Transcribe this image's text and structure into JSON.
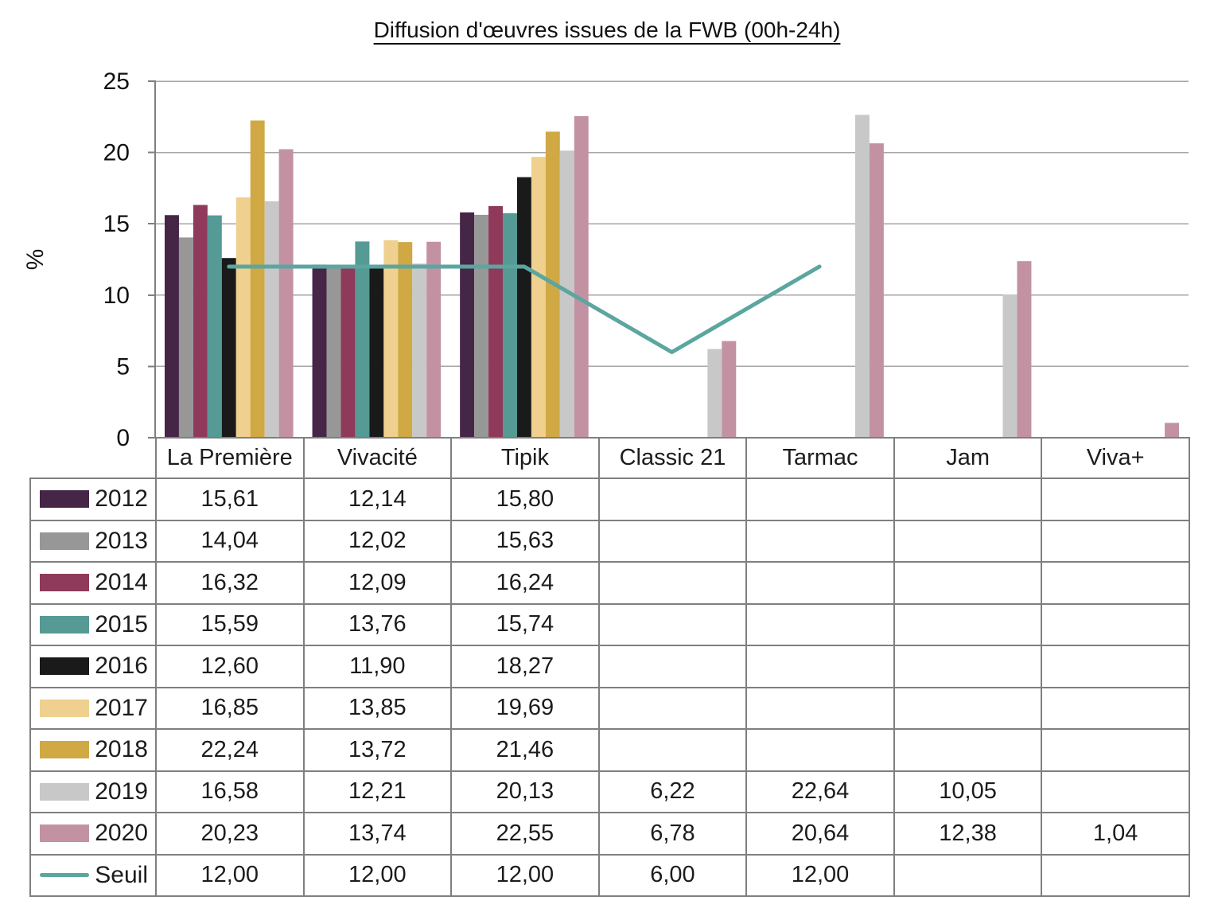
{
  "title": "Diffusion d'œuvres issues de la FWB (00h-24h)",
  "chart_data": {
    "type": "bar",
    "title": "Diffusion d'œuvres issues de la FWB (00h-24h)",
    "xlabel": "",
    "ylabel": "%",
    "ylim": [
      0,
      25
    ],
    "yticks": [
      0,
      5,
      10,
      15,
      20,
      25
    ],
    "grid": "horizontal-major-every-5",
    "legend_position": "table-left-column",
    "categories": [
      "La Première",
      "Vivacité",
      "Tipik",
      "Classic 21",
      "Tarmac",
      "Jam",
      "Viva+"
    ],
    "series": [
      {
        "name": "2012",
        "type": "bar",
        "color": "#452647",
        "values": [
          "15,61",
          "12,14",
          "15,80",
          "",
          "",
          "",
          ""
        ]
      },
      {
        "name": "2013",
        "type": "bar",
        "color": "#979797",
        "values": [
          "14,04",
          "12,02",
          "15,63",
          "",
          "",
          "",
          ""
        ]
      },
      {
        "name": "2014",
        "type": "bar",
        "color": "#8f3a5a",
        "values": [
          "16,32",
          "12,09",
          "16,24",
          "",
          "",
          "",
          ""
        ]
      },
      {
        "name": "2015",
        "type": "bar",
        "color": "#559a94",
        "values": [
          "15,59",
          "13,76",
          "15,74",
          "",
          "",
          "",
          ""
        ]
      },
      {
        "name": "2016",
        "type": "bar",
        "color": "#1a1a1a",
        "values": [
          "12,60",
          "11,90",
          "18,27",
          "",
          "",
          "",
          ""
        ]
      },
      {
        "name": "2017",
        "type": "bar",
        "color": "#efd08e",
        "values": [
          "16,85",
          "13,85",
          "19,69",
          "",
          "",
          "",
          ""
        ]
      },
      {
        "name": "2018",
        "type": "bar",
        "color": "#d0a844",
        "values": [
          "22,24",
          "13,72",
          "21,46",
          "",
          "",
          "",
          ""
        ]
      },
      {
        "name": "2019",
        "type": "bar",
        "color": "#c8c8c8",
        "values": [
          "16,58",
          "12,21",
          "20,13",
          "6,22",
          "22,64",
          "10,05",
          ""
        ]
      },
      {
        "name": "2020",
        "type": "bar",
        "color": "#c292a3",
        "values": [
          "20,23",
          "13,74",
          "22,55",
          "6,78",
          "20,64",
          "12,38",
          "1,04"
        ]
      },
      {
        "name": "Seuil",
        "type": "line",
        "color": "#5ba69f",
        "values": [
          "12,00",
          "12,00",
          "12,00",
          "6,00",
          "12,00",
          "",
          ""
        ]
      }
    ]
  }
}
